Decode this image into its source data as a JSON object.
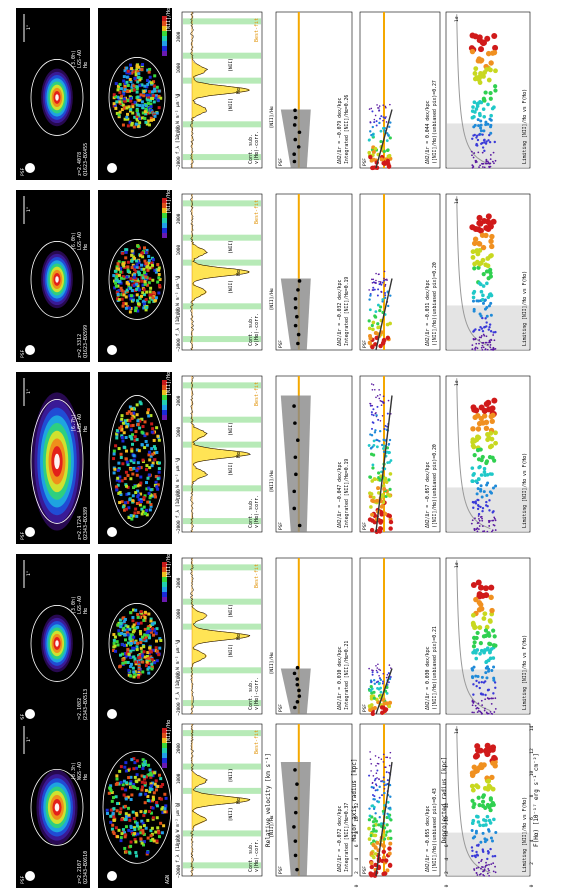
{
  "figure": {
    "rows": [
      {
        "id": "Q1623-BX455",
        "map_label": "Q1623−BX455",
        "redshift": "z=2.4078",
        "mode": "LGS-AO",
        "exptime": "(3.0h)",
        "ratio_label": "[NII]/Hα",
        "ha_label": "Hα",
        "spec_note_1": "v(Hα)-corr.",
        "spec_note_2": "Cont. sub.",
        "best_fit": "Best-fit",
        "psf_label": "PSF",
        "scale_label": "1\"",
        "integrated_label": "Integrated [NII]/Hα=0.26",
        "integrated_grad": "ΔN2/Δr = −0.079 dex/kpc",
        "unbiased_label": "([NII]/Hα)(unbiased pix)=0.27",
        "unbiased_grad": "ΔN2/Δr = 0.044 dex/kpc",
        "limiting_label": "Limiting [NII]/Hα vs F(Hα)",
        "sigma_label": "1σ"
      },
      {
        "id": "Q1623-BX599",
        "map_label": "Q1623−BX599",
        "redshift": "z=2.3312",
        "mode": "LGS-AO",
        "exptime": "(6.0h)",
        "ratio_label": "[NII]/Hα",
        "ha_label": "Hα",
        "spec_note_1": "v(Hα)-corr.",
        "spec_note_2": "Cont. sub.",
        "best_fit": "Best-fit",
        "psf_label": "PSF",
        "scale_label": "1\"",
        "integrated_label": "Integrated [NII]/Hα=0.19",
        "integrated_grad": "ΔN2/Δr = −0.032 dex/kpc",
        "unbiased_label": "([NII]/Hα)(unbiased pix)=0.20",
        "unbiased_grad": "ΔN2/Δr = −0.031 dex/kpc",
        "limiting_label": "Limiting [NII]/Hα vs F(Hα)",
        "sigma_label": "1σ"
      },
      {
        "id": "Q2343-BX389",
        "map_label": "Q2343−BX389",
        "redshift": "z=2.1724",
        "mode": "LGS-AO",
        "exptime": "(6.7h)",
        "ratio_label": "[NII]/Hα",
        "ha_label": "Hα",
        "spec_note_1": "v(Hα)-corr.",
        "spec_note_2": "Cont. sub.",
        "best_fit": "Best-fit",
        "psf_label": "PSF",
        "scale_label": "1\"",
        "integrated_label": "Integrated [NII]/Hα=0.19",
        "integrated_grad": "ΔN2/Δr = −0.047 dex/kpc",
        "unbiased_label": "([NII]/Hα)(unbiased pix)=0.20",
        "unbiased_grad": "ΔN2/Δr = −0.057 dex/kpc",
        "limiting_label": "Limiting [NII]/Hα vs F(Hα)",
        "sigma_label": "1σ"
      },
      {
        "id": "Q2343-BX513",
        "map_label": "Q2343−BX513",
        "redshift": "z=2.1082",
        "mode": "LGS-AO",
        "exptime": "(3.0h)",
        "ratio_label": "[NII]/Hα",
        "ha_label": "Hα",
        "spec_note_1": "v(Hα)-corr.",
        "spec_note_2": "Cont. sub.",
        "best_fit": "Best-fit",
        "psf_label": "PSF",
        "scale_label": "1\"",
        "integrated_label": "Integrated [NII]/Hα=0.21",
        "integrated_grad": "ΔN2/Δr = 0.010 dex/kpc",
        "unbiased_label": "([NII]/Hα)(unbiased pix)=0.21",
        "unbiased_grad": "ΔN2/Δr = 0.030 dex/kpc",
        "limiting_label": "Limiting [NII]/Hα vs F(Hα)",
        "sigma_label": "1σ"
      },
      {
        "id": "Q2343-BX610",
        "map_label": "Q2343−BX610",
        "redshift": "z=2.2107",
        "mode": "NGS-AO",
        "exptime": "(8.3h)",
        "ratio_label": "[NII]/Hα",
        "ha_label": "Hα",
        "spec_note_1": "v(Hα)-corr.",
        "spec_note_2": "Cont. sub.",
        "best_fit": "Best-fit",
        "psf_label": "PSF",
        "scale_label": "1\"",
        "agn_label": "AGN",
        "integrated_label": "Integrated [NII]/Hα=0.37",
        "integrated_grad": "ΔN2/Δr = −0.072 dex/kpc",
        "unbiased_label": "([NII]/Hα)(unbiased pix)=0.43",
        "unbiased_grad": "ΔN2/Δr = −0.055 dex/kpc",
        "limiting_label": "Limiting [NII]/Hα vs F(Hα)",
        "sigma_label": "1σ"
      }
    ],
    "axis_labels": {
      "relative_velocity": "Relative velocity [km s⁻¹]",
      "major_axis": "Major axis radius [kpc]",
      "deprojected": "Deprojected radius [kpc]",
      "flux": "F(Hα) [10⁻¹⁷ erg s⁻¹ cm⁻²]",
      "flux_density": "f_λ [10⁻¹⁸ W m⁻² μm⁻¹]",
      "ratio_axis": "[NII]/Hα"
    },
    "tick_labels": {
      "velocity": [
        "−2000",
        "−1000",
        "0",
        "1000",
        "2000"
      ],
      "radius": [
        "0",
        "2",
        "4",
        "6",
        "8",
        "10",
        "12"
      ],
      "flux": [
        "0",
        "2",
        "4",
        "6",
        "8",
        "10",
        "12",
        "14"
      ],
      "ratio": [
        "0.1",
        "1.0"
      ]
    },
    "colors": {
      "integrated_line": "#f5a800",
      "fit_band": "#888888",
      "spectrum_fill": "#ffe455",
      "sky_band": "#7cd87c",
      "ellipse": "#ffffff"
    }
  }
}
